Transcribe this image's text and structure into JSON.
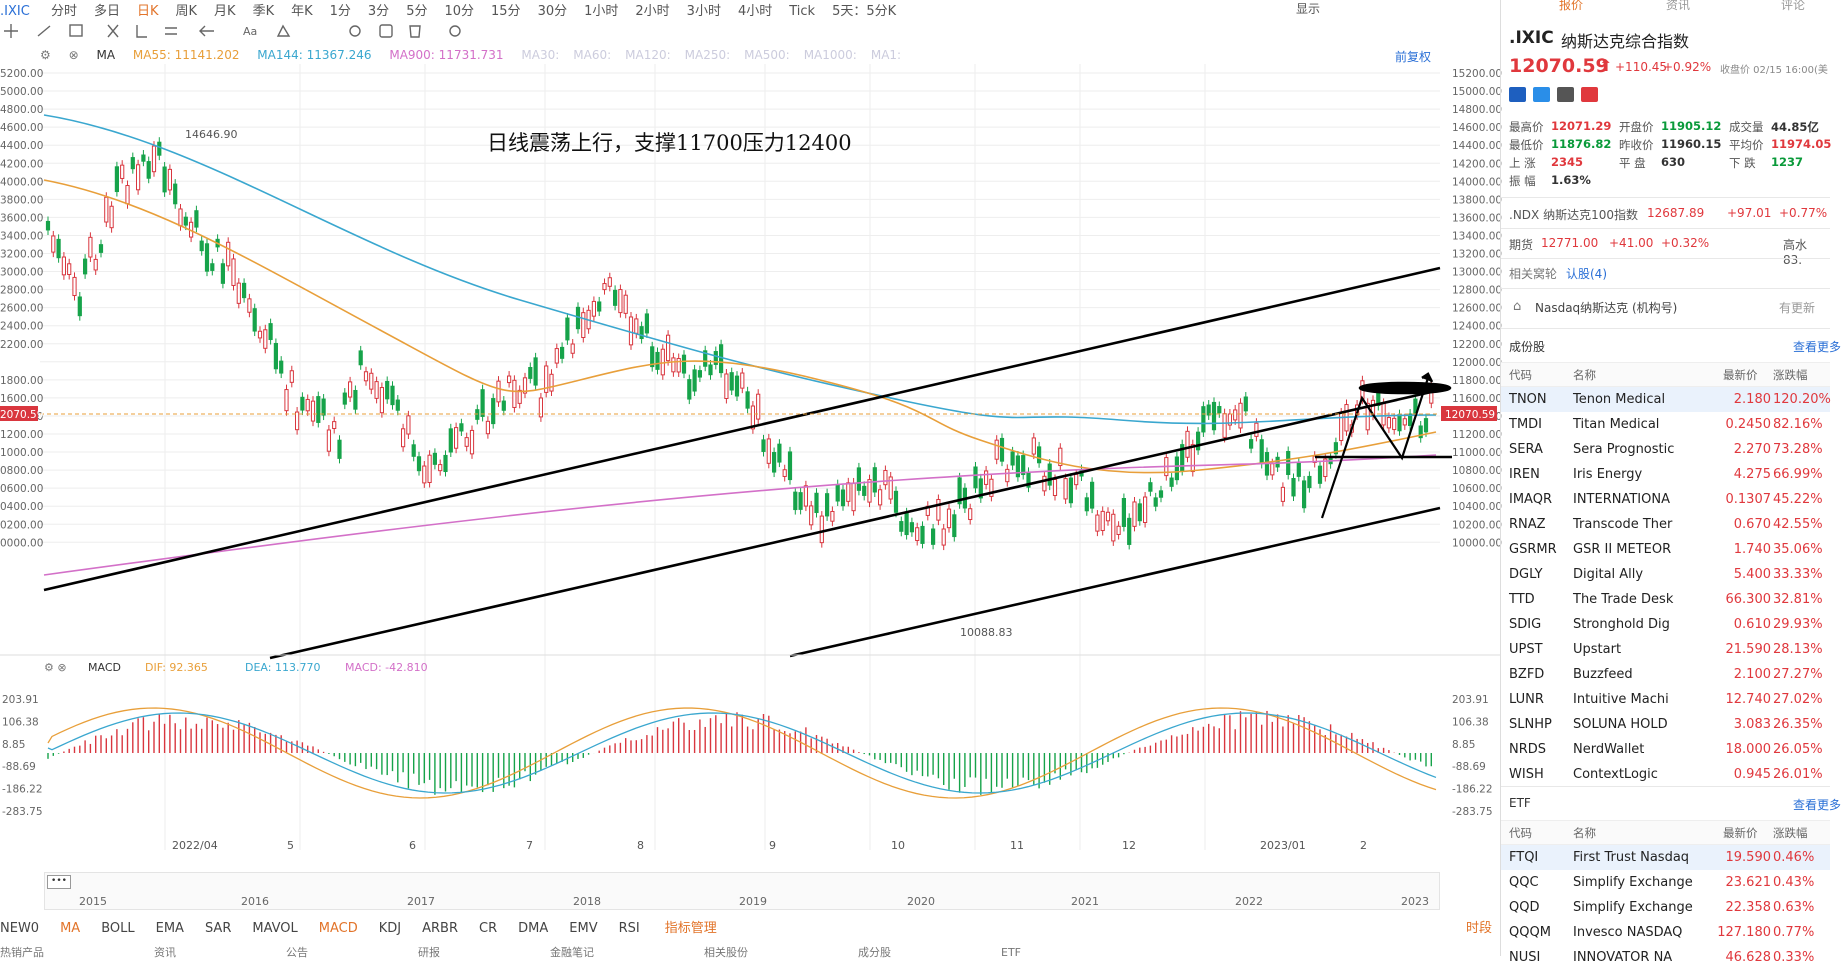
{
  "topbar": {
    "symbol": ".IXIC",
    "periods": [
      "分时",
      "多日",
      "日K",
      "周K",
      "月K",
      "季K",
      "年K",
      "1分",
      "3分",
      "5分",
      "10分",
      "15分",
      "30分",
      "1小时",
      "2小时",
      "3小时",
      "4小时",
      "Tick",
      "5天：5分K"
    ],
    "active_period": "日K",
    "right_label": "显示"
  },
  "indicators": {
    "ma_label": "MA",
    "ma55": "MA55: 11141.202",
    "ma144": "MA144: 11367.246",
    "ma900": "MA900: 11731.731",
    "others": [
      "MA30:",
      "MA60:",
      "MA120:",
      "MA250:",
      "MA500:",
      "MA1000:",
      "MA1:"
    ],
    "adjust": "前复权",
    "colors": {
      "ma55": "#e89f3a",
      "ma144": "#3aa7cf",
      "ma900": "#d370c8"
    }
  },
  "chart": {
    "annotation": "日线震荡上行，支撑11700压力12400",
    "high_label": "14646.90",
    "low_label": "10088.83",
    "price_tag": "12070.59",
    "price_axis": [
      "15200.00",
      "15000.00",
      "14800.00",
      "14600.00",
      "14400.00",
      "14200.00",
      "14000.00",
      "13800.00",
      "13600.00",
      "13400.00",
      "13200.00",
      "13000.00",
      "12800.00",
      "12600.00",
      "12400.00",
      "12200.00",
      "12000.00",
      "11800.00",
      "11600.00",
      "11400.00",
      "11200.00",
      "11000.00",
      "10800.00",
      "10600.00",
      "10400.00",
      "10200.00",
      "10000.00"
    ],
    "left_axis": [
      "5200.00",
      "5000.00",
      "4800.00",
      "4600.00",
      "4400.00",
      "4200.00",
      "4000.00",
      "3800.00",
      "3600.00",
      "3400.00",
      "3200.00",
      "3000.00",
      "2800.00",
      "2600.00",
      "2400.00",
      "2200.00",
      "",
      "1800.00",
      "1600.00",
      "1400.00",
      "1200.00",
      "1000.00",
      "0800.00",
      "0600.00",
      "0400.00",
      "0200.00",
      "0000.00"
    ]
  },
  "macd": {
    "label": "MACD",
    "dif": "DIF: 92.365",
    "dea": "DEA: 113.770",
    "macd": "MACD: -42.810",
    "axis": [
      "203.91",
      "106.38",
      "8.85",
      "-88.69",
      "-186.22",
      "-283.75"
    ]
  },
  "xaxis": {
    "months": [
      "2022/04",
      "5",
      "6",
      "7",
      "8",
      "9",
      "10",
      "11",
      "12",
      "2023/01",
      "2"
    ]
  },
  "navigator": {
    "years": [
      "2015",
      "2016",
      "2017",
      "2018",
      "2019",
      "2020",
      "2021",
      "2022",
      "2023"
    ]
  },
  "tabs": {
    "items": [
      "NEW0",
      "MA",
      "BOLL",
      "EMA",
      "SAR",
      "MAVOL",
      "MACD",
      "KDJ",
      "ARBR",
      "CR",
      "DMA",
      "EMV",
      "RSI"
    ],
    "manage": "指标管理",
    "right": "时段"
  },
  "bottom_strip": [
    "热销产品",
    "资讯",
    "公告",
    "研报",
    "金融笔记",
    "相关股份",
    "成分股",
    "ETF"
  ],
  "side": {
    "top_tabs": [
      "报价",
      "资讯",
      "评论"
    ],
    "symbol": ".IXIC",
    "name": "纳斯达克综合指数",
    "price": "12070.59",
    "change": "+110.45",
    "pct": "+0.92%",
    "closed": "收盘价 02/15 16:00(美",
    "stats": [
      [
        "最高价",
        "12071.29",
        "开盘价",
        "11905.12",
        "成交量",
        "44.85亿"
      ],
      [
        "最低价",
        "11876.82",
        "昨收价",
        "11960.15",
        "平均价",
        "11974.05"
      ],
      [
        "上 涨",
        "2345",
        "平 盘",
        "630",
        "下 跌",
        "1237"
      ],
      [
        "振 幅",
        "1.63%",
        "",
        "",
        "",
        ""
      ]
    ],
    "ndx": {
      "label": ".NDX 纳斯达克100指数",
      "price": "12687.89",
      "change": "+97.01",
      "pct": "+0.77%"
    },
    "futures": {
      "label": "期货",
      "price": "12771.00",
      "change": "+41.00",
      "pct": "+0.32%",
      "extra": "高水 83."
    },
    "related": {
      "label": "相关窝轮",
      "link": "认股(4)"
    },
    "exchange": {
      "name": "Nasdaq纳斯达克 (机构号)",
      "action": "有更新"
    },
    "constituents": {
      "title": "成份股",
      "more": "查看更多",
      "headers": [
        "代码",
        "名称",
        "最新价",
        "涨跌幅"
      ],
      "rows": [
        [
          "TNON",
          "Tenon Medical",
          "2.180",
          "120.20%"
        ],
        [
          "TMDI",
          "Titan Medical",
          "0.2450",
          "82.16%"
        ],
        [
          "SERA",
          "Sera Prognostic",
          "2.270",
          "73.28%"
        ],
        [
          "IREN",
          "Iris Energy",
          "4.275",
          "66.99%"
        ],
        [
          "IMAQR",
          "INTERNATIONA",
          "0.1307",
          "45.22%"
        ],
        [
          "RNAZ",
          "Transcode Ther",
          "0.670",
          "42.55%"
        ],
        [
          "GSRMR",
          "GSR II METEOR",
          "1.740",
          "35.06%"
        ],
        [
          "DGLY",
          "Digital Ally",
          "5.400",
          "33.33%"
        ],
        [
          "TTD",
          "The Trade Desk",
          "66.300",
          "32.81%"
        ],
        [
          "SDIG",
          "Stronghold Dig",
          "0.610",
          "29.93%"
        ],
        [
          "UPST",
          "Upstart",
          "21.590",
          "28.13%"
        ],
        [
          "BZFD",
          "Buzzfeed",
          "2.100",
          "27.27%"
        ],
        [
          "LUNR",
          "Intuitive Machi",
          "12.740",
          "27.02%"
        ],
        [
          "SLNHP",
          "SOLUNA HOLD",
          "3.083",
          "26.35%"
        ],
        [
          "NRDS",
          "NerdWallet",
          "18.000",
          "26.05%"
        ],
        [
          "WISH",
          "ContextLogic",
          "0.945",
          "26.01%"
        ]
      ]
    },
    "etf": {
      "title": "ETF",
      "more": "查看更多",
      "headers": [
        "代码",
        "名称",
        "最新价",
        "涨跌幅"
      ],
      "rows": [
        [
          "FTQI",
          "First Trust Nasdaq",
          "19.590",
          "0.46%"
        ],
        [
          "QQC",
          "Simplify Exchange",
          "23.621",
          "0.43%"
        ],
        [
          "QQD",
          "Simplify Exchange",
          "22.358",
          "0.63%"
        ],
        [
          "QQQM",
          "Invesco NASDAQ",
          "127.180",
          "0.77%"
        ],
        [
          "NUSI",
          "INNOVATOR NA",
          "46.628",
          "0.33%"
        ]
      ]
    }
  }
}
